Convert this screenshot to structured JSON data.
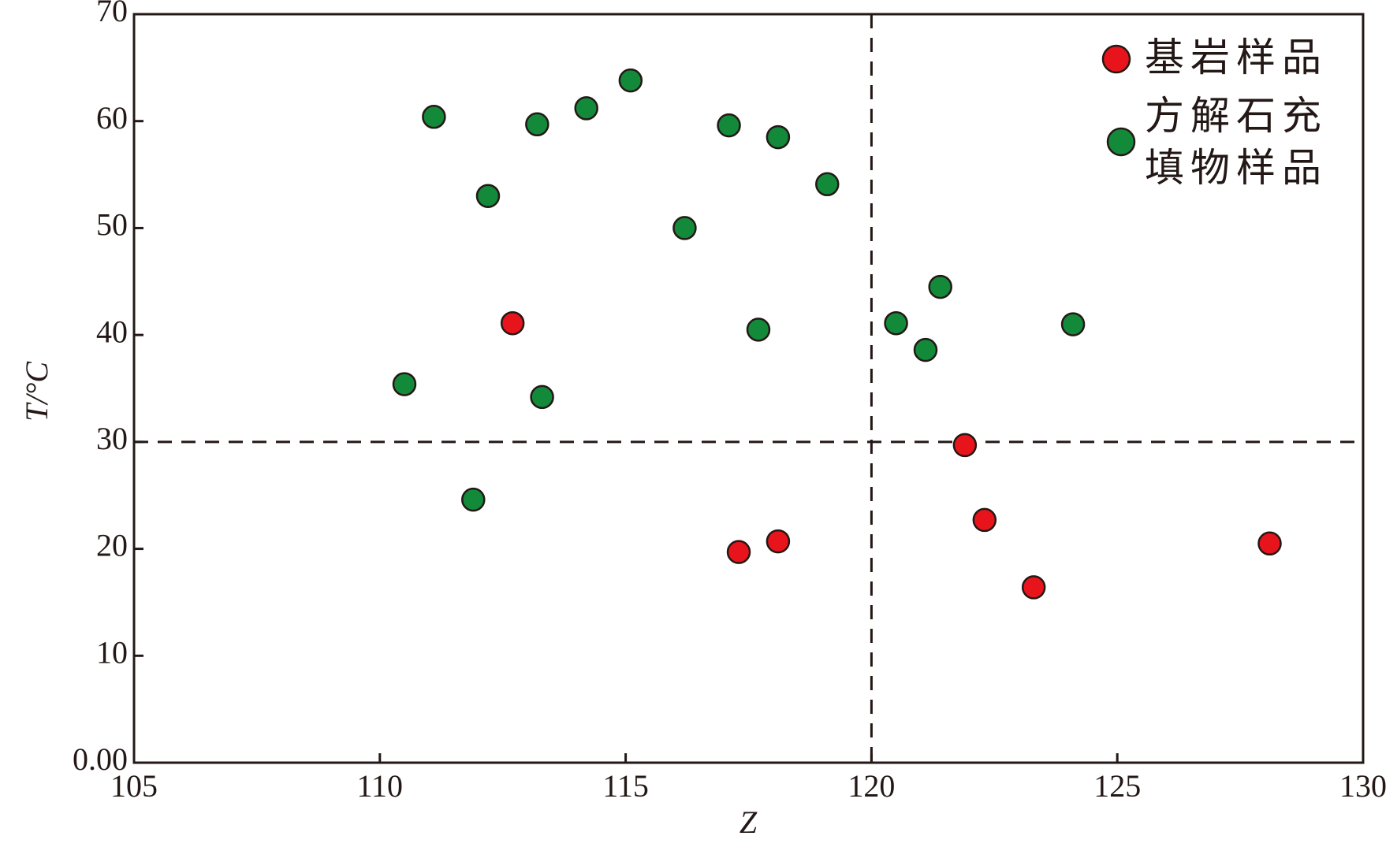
{
  "chart_data": {
    "type": "scatter",
    "x_label": "Z",
    "y_label": "T/°C",
    "xlim": [
      105,
      130
    ],
    "xticks": [
      105,
      110,
      115,
      120,
      125,
      130
    ],
    "ylim": [
      0,
      70
    ],
    "yticks": [
      {
        "value": 0,
        "label": "0.00"
      },
      10,
      20,
      30,
      40,
      50,
      60,
      70
    ],
    "vlines": [
      120
    ],
    "hlines": [
      30
    ],
    "legend": "upper right",
    "series": [
      {
        "name": "基岩样品",
        "color": "#e8141c",
        "x": [
          112.7,
          117.3,
          118.1,
          121.9,
          122.3,
          123.3,
          128.1
        ],
        "values": [
          41.1,
          19.7,
          20.7,
          29.7,
          22.7,
          16.4,
          20.5
        ]
      },
      {
        "name": "方解石充填物样品",
        "color": "#13893a",
        "x": [
          111.1,
          112.2,
          113.2,
          114.2,
          115.1,
          116.2,
          117.1,
          118.1,
          119.1,
          117.7,
          110.5,
          113.3,
          111.9,
          120.5,
          121.1,
          121.4,
          124.1
        ],
        "values": [
          60.4,
          53.0,
          59.7,
          61.2,
          63.8,
          50.0,
          59.6,
          58.5,
          54.1,
          40.5,
          35.4,
          34.2,
          24.6,
          41.1,
          38.6,
          44.5,
          41.0
        ]
      }
    ]
  }
}
